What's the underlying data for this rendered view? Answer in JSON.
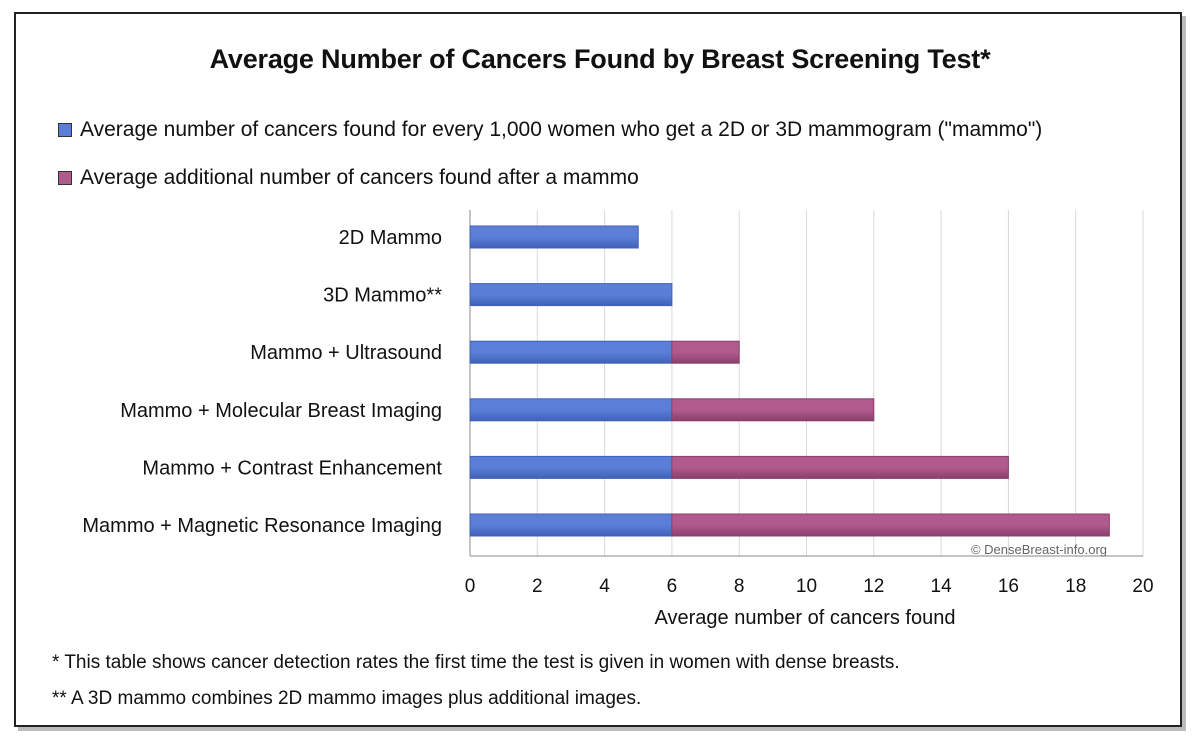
{
  "colors": {
    "series1": "#5b7fd8",
    "series1_dark": "#3f62b8",
    "series2": "#b05a8e",
    "series2_dark": "#8a3f6c",
    "grid": "#d9d9d9"
  },
  "watermark": "© DenseBreast-info.org",
  "footnotes": [
    "* This table shows cancer detection rates the first time the test is given in women with dense breasts.",
    "** A 3D mammo combines 2D mammo images plus additional images."
  ],
  "chart_data": {
    "type": "bar",
    "orientation": "horizontal",
    "stacked": true,
    "title": "Average Number of Cancers Found by Breast Screening Test*",
    "xlabel": "Average number of cancers found",
    "ylabel": "",
    "xlim": [
      0,
      20
    ],
    "xticks": [
      0,
      2,
      4,
      6,
      8,
      10,
      12,
      14,
      16,
      18,
      20
    ],
    "grid": true,
    "legend_position": "top-left",
    "categories": [
      "2D Mammo",
      "3D Mammo**",
      "Mammo + Ultrasound",
      "Mammo + Molecular Breast Imaging",
      "Mammo + Contrast Enhancement",
      "Mammo + Magnetic Resonance Imaging"
    ],
    "series": [
      {
        "name": "Average number of cancers found for every 1,000 women who get a 2D or 3D  mammogram (\"mammo\")",
        "values": [
          5,
          6,
          6,
          6,
          6,
          6
        ]
      },
      {
        "name": "Average additional number of cancers found after a mammo",
        "values": [
          0,
          0,
          2,
          6,
          10,
          13
        ]
      }
    ]
  }
}
